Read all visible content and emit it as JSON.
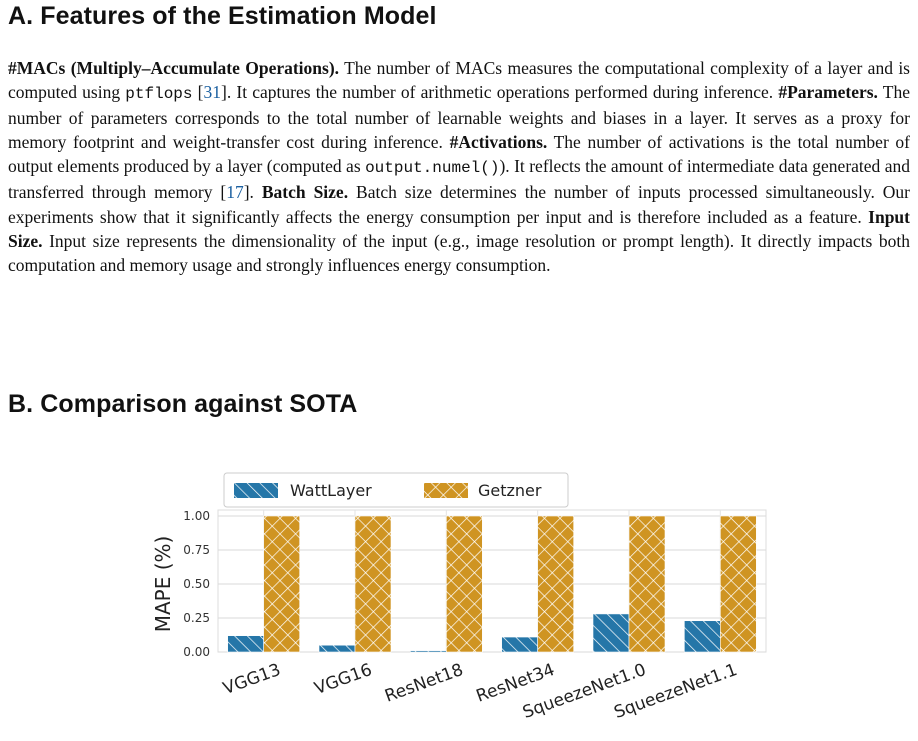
{
  "section_a": {
    "title": "A. Features of the Estimation Model",
    "paragraph": {
      "macs_head": "#MACs (Multiply–Accumulate Operations).",
      "macs_text_1": " The number of MACs measures the computational complexity of a layer and is computed using ",
      "macs_tool": "ptflops",
      "macs_cite_pre": " [",
      "macs_cite": "31",
      "macs_text_2": "]. It captures the number of arithmetic operations performed during inference. ",
      "params_head": "#Parameters.",
      "params_text": " The number of parameters corresponds to the total number of learnable weights and biases in a layer. It serves as a proxy for memory footprint and weight-transfer cost during inference. ",
      "acts_head": "#Activations.",
      "acts_text_1": " The number of activations is the total number of output elements produced by a layer (computed as ",
      "acts_code": "output.numel()",
      "acts_text_2": "). It reflects the amount of intermediate data generated and transferred through memory [",
      "acts_cite": "17",
      "acts_text_3": "]. ",
      "batch_head": "Batch Size.",
      "batch_text": " Batch size determines the number of inputs processed simultaneously. Our experiments show that it significantly affects the energy consumption per input and is therefore included as a feature. ",
      "input_head": "Input Size.",
      "input_text": " Input size represents the dimensionality of the input (e.g., image resolution or prompt length). It directly impacts both computation and memory usage and strongly influences energy consumption."
    }
  },
  "section_b": {
    "title": "B. Comparison against SOTA"
  },
  "chart_data": {
    "type": "bar",
    "categories": [
      "VGG13",
      "VGG16",
      "ResNet18",
      "ResNet34",
      "SqueezeNet1.0",
      "SqueezeNet1.1"
    ],
    "series": [
      {
        "name": "WattLayer",
        "values": [
          0.12,
          0.05,
          0.01,
          0.11,
          0.28,
          0.23
        ],
        "color": "#2576a8",
        "hatch": "diagonal"
      },
      {
        "name": "Getzner",
        "values": [
          1.0,
          1.0,
          1.0,
          1.0,
          1.0,
          1.0
        ],
        "color": "#cf9422",
        "hatch": "crosshatch"
      }
    ],
    "ylabel": "MAPE (%)",
    "ylim": [
      0,
      1.0
    ],
    "yticks": [
      "0.00",
      "0.25",
      "0.50",
      "0.75",
      "1.00"
    ],
    "grid": true,
    "legend_position": "top"
  }
}
